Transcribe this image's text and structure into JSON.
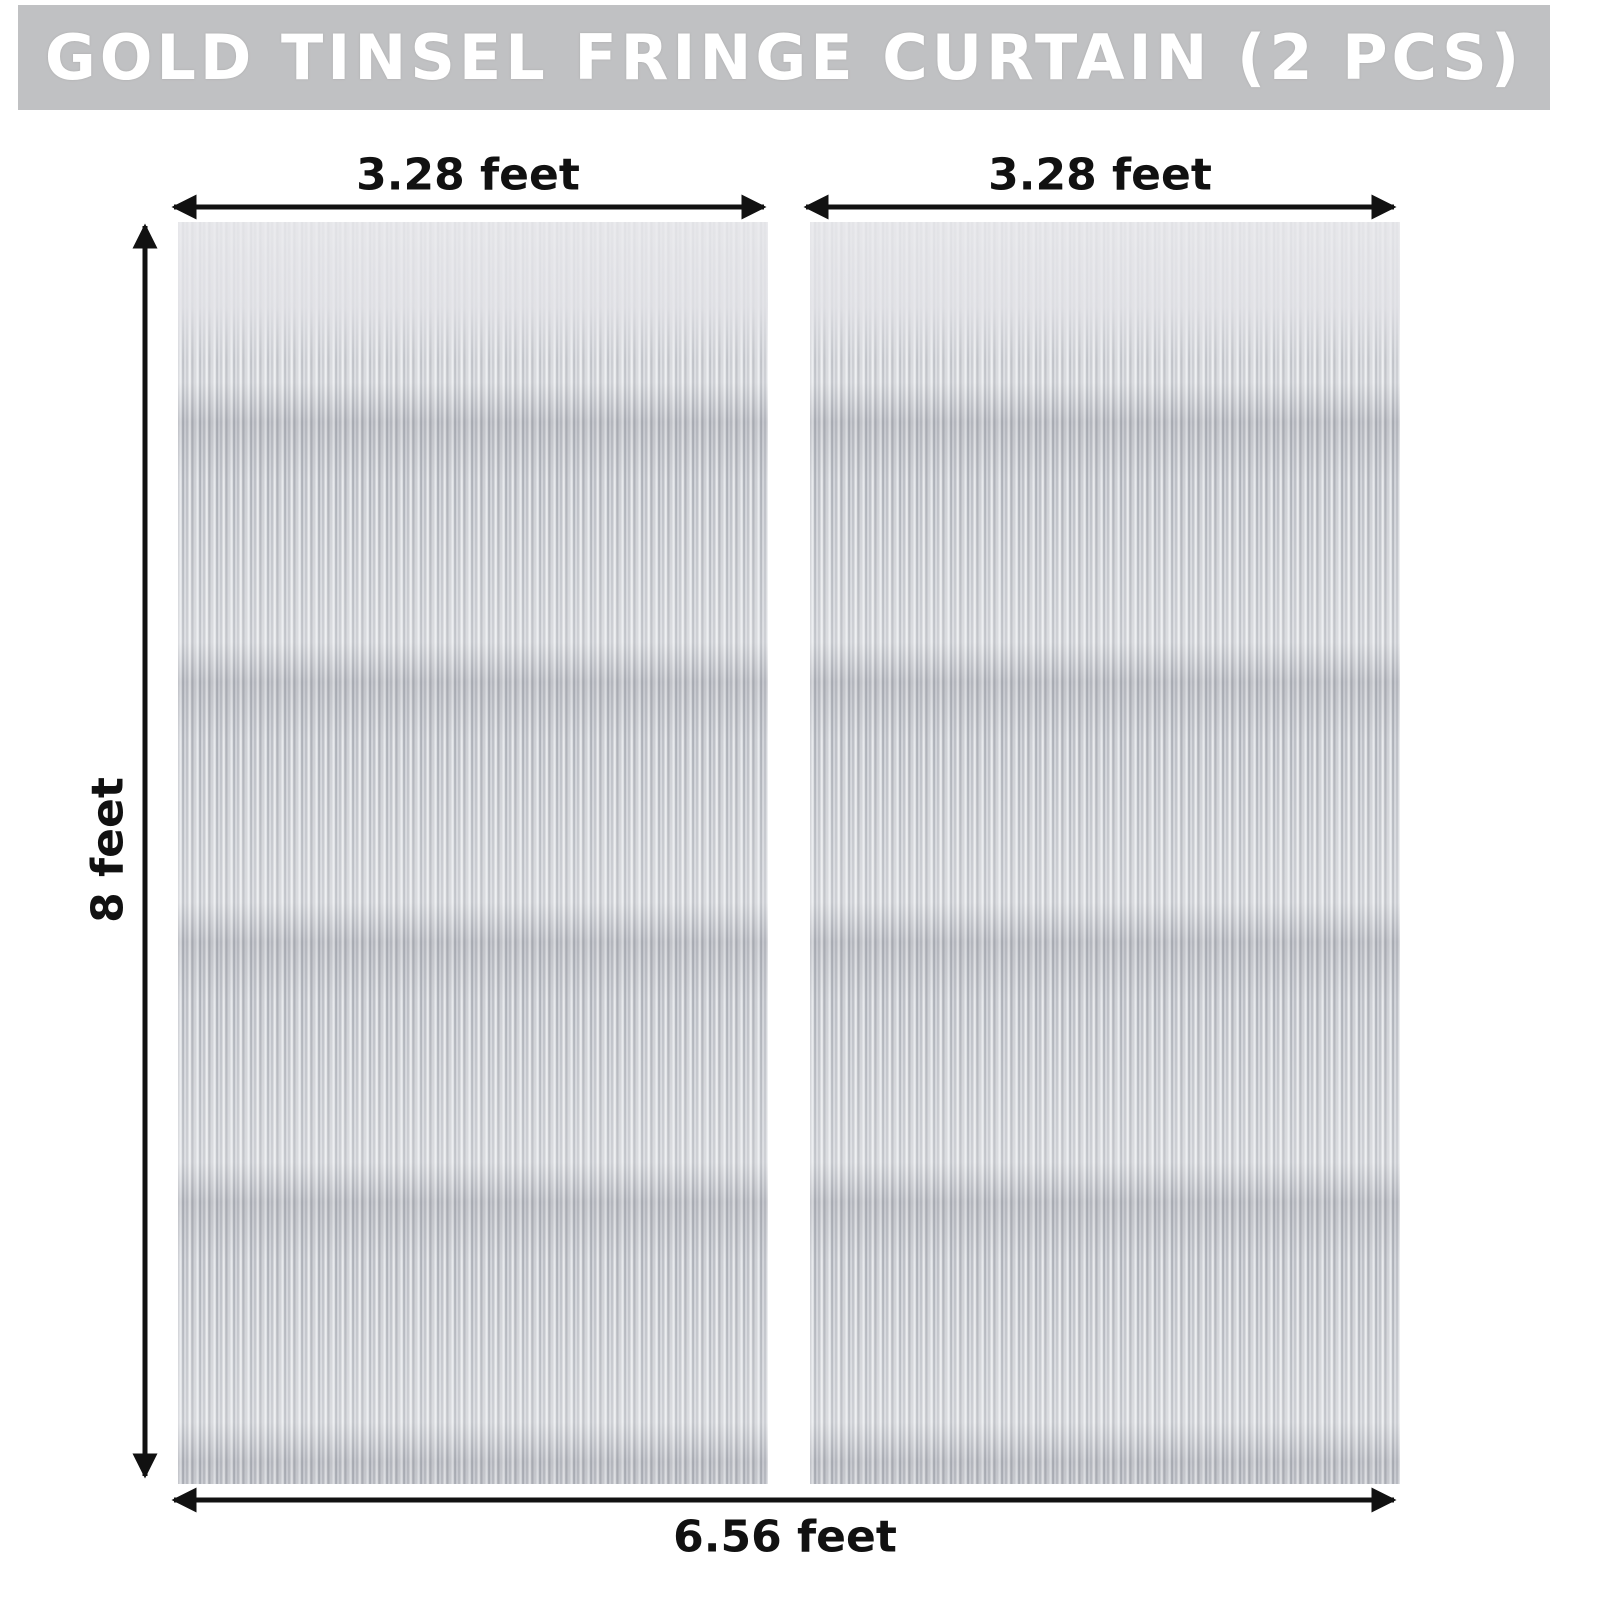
{
  "header": {
    "title": "GOLD TINSEL FRINGE CURTAIN (2 PCS)"
  },
  "dimensions": {
    "left_width": "3.28 feet",
    "right_width": "3.28 feet",
    "height": "8 feet",
    "total_width": "6.56 feet"
  }
}
